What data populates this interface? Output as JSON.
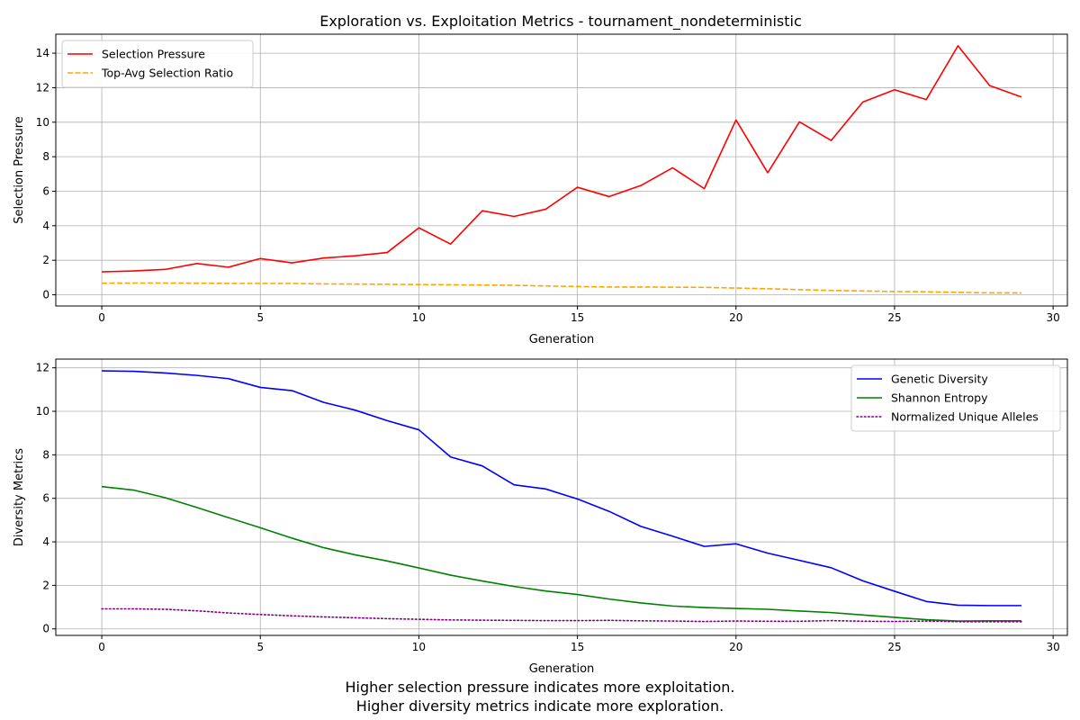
{
  "chart_data": [
    {
      "type": "line",
      "title": "Exploration vs. Exploitation Metrics - tournament_nondeterministic",
      "xlabel": "Generation",
      "ylabel": "Selection Pressure",
      "xlim": [
        -1.45,
        30.45
      ],
      "ylim": [
        -0.65,
        15.1
      ],
      "xticks": [
        0,
        5,
        10,
        15,
        20,
        25,
        30
      ],
      "yticks": [
        0,
        2,
        4,
        6,
        8,
        10,
        12,
        14
      ],
      "grid": true,
      "legend_position": "upper-left",
      "x": [
        0,
        1,
        2,
        3,
        4,
        5,
        6,
        7,
        8,
        9,
        10,
        11,
        12,
        13,
        14,
        15,
        16,
        17,
        18,
        19,
        20,
        21,
        22,
        23,
        24,
        25,
        26,
        27,
        28,
        29
      ],
      "series": [
        {
          "name": "Selection Pressure",
          "color": "#ff0000",
          "style": "solid",
          "values": [
            1.33,
            1.38,
            1.47,
            1.81,
            1.6,
            2.1,
            1.85,
            2.13,
            2.26,
            2.45,
            3.88,
            2.94,
            4.87,
            4.54,
            4.96,
            6.23,
            5.69,
            6.33,
            7.36,
            6.15,
            10.13,
            7.07,
            10.02,
            8.94,
            11.17,
            11.88,
            11.31,
            14.43,
            12.12,
            11.46
          ]
        },
        {
          "name": "Top-Avg Selection Ratio",
          "color": "#ffa500",
          "style": "dashed",
          "values": [
            0.67,
            0.68,
            0.68,
            0.67,
            0.66,
            0.66,
            0.66,
            0.63,
            0.62,
            0.61,
            0.59,
            0.58,
            0.56,
            0.55,
            0.51,
            0.48,
            0.45,
            0.45,
            0.44,
            0.43,
            0.39,
            0.35,
            0.3,
            0.25,
            0.22,
            0.19,
            0.17,
            0.14,
            0.11,
            0.11
          ]
        }
      ]
    },
    {
      "type": "line",
      "title": "",
      "xlabel": "Generation",
      "ylabel": "Diversity Metrics",
      "xlim": [
        -1.45,
        30.45
      ],
      "ylim": [
        -0.3,
        12.4
      ],
      "xticks": [
        0,
        5,
        10,
        15,
        20,
        25,
        30
      ],
      "yticks": [
        0,
        2,
        4,
        6,
        8,
        10,
        12
      ],
      "grid": true,
      "legend_position": "upper-right",
      "x": [
        0,
        1,
        2,
        3,
        4,
        5,
        6,
        7,
        8,
        9,
        10,
        11,
        12,
        13,
        14,
        15,
        16,
        17,
        18,
        19,
        20,
        21,
        22,
        23,
        24,
        25,
        26,
        27,
        28,
        29
      ],
      "series": [
        {
          "name": "Genetic Diversity",
          "color": "#0000ff",
          "style": "solid",
          "values": [
            11.86,
            11.84,
            11.76,
            11.65,
            11.5,
            11.1,
            10.95,
            10.41,
            10.05,
            9.57,
            9.15,
            7.9,
            7.49,
            6.62,
            6.43,
            5.97,
            5.4,
            4.71,
            4.26,
            3.79,
            3.91,
            3.48,
            3.15,
            2.81,
            2.21,
            1.73,
            1.26,
            1.09,
            1.07,
            1.07
          ]
        },
        {
          "name": "Shannon Entropy",
          "color": "#008000",
          "style": "solid",
          "values": [
            6.54,
            6.38,
            6.03,
            5.58,
            5.11,
            4.65,
            4.17,
            3.73,
            3.4,
            3.12,
            2.8,
            2.47,
            2.2,
            1.95,
            1.74,
            1.58,
            1.37,
            1.19,
            1.05,
            0.98,
            0.94,
            0.9,
            0.82,
            0.75,
            0.64,
            0.53,
            0.42,
            0.36,
            0.37,
            0.37
          ]
        },
        {
          "name": "Normalized Unique Alleles",
          "color": "#800080",
          "style": "dotted",
          "values": [
            0.92,
            0.92,
            0.9,
            0.83,
            0.73,
            0.66,
            0.6,
            0.55,
            0.51,
            0.47,
            0.44,
            0.41,
            0.4,
            0.39,
            0.38,
            0.38,
            0.39,
            0.37,
            0.36,
            0.34,
            0.36,
            0.35,
            0.35,
            0.38,
            0.35,
            0.34,
            0.36,
            0.33,
            0.33,
            0.33
          ]
        }
      ]
    }
  ],
  "caption": {
    "line1": "Higher selection pressure indicates more exploitation.",
    "line2": "Higher diversity metrics indicate more exploration."
  }
}
